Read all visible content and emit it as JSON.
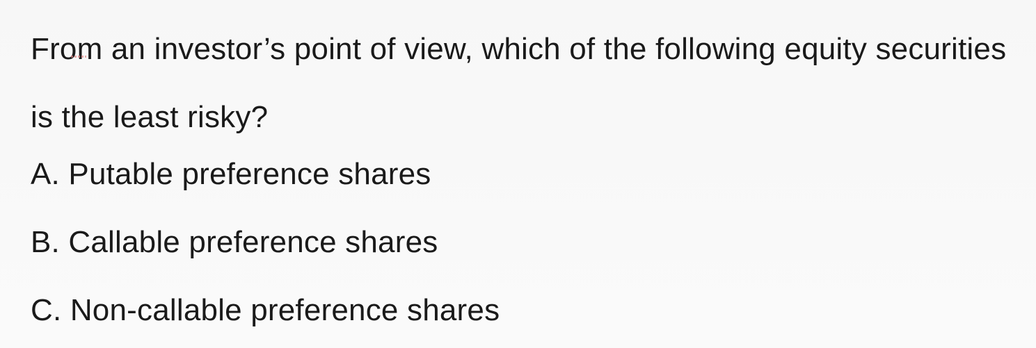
{
  "question": {
    "text": "From an investor’s point of view, which of the following equity securities is the least risky?"
  },
  "options": [
    {
      "label": "A. Putable preference shares"
    },
    {
      "label": "B. Callable preference shares"
    },
    {
      "label": "C. Non-callable preference shares"
    }
  ]
}
